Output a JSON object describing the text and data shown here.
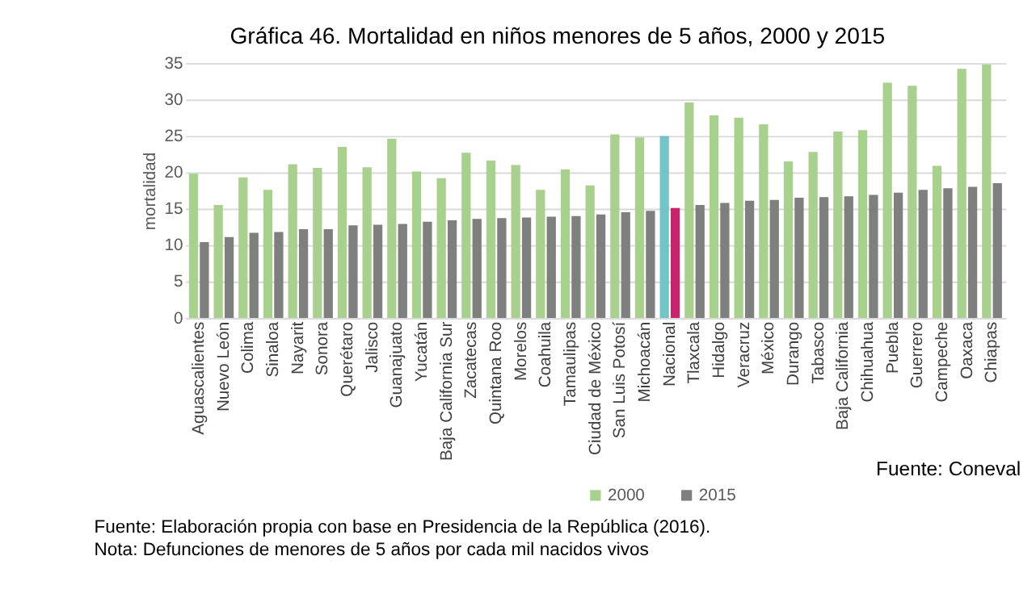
{
  "chart_data": {
    "type": "bar",
    "title": "Gráfica 46. Mortalidad en niños menores de 5 años, 2000 y 2015",
    "ylabel": "mortalidad",
    "categories": [
      "Aguascalientes",
      "Nuevo León",
      "Colima",
      "Sinaloa",
      "Nayarit",
      "Sonora",
      "Querétaro",
      "Jalisco",
      "Guanajuato",
      "Yucatán",
      "Baja California Sur",
      "Zacatecas",
      "Quintana Roo",
      "Morelos",
      "Coahuila",
      "Tamaulipas",
      "Ciudad de México",
      "San Luis Potosí",
      "Michoacán",
      "Nacional",
      "Tlaxcala",
      "Hidalgo",
      "Veracruz",
      "México",
      "Durango",
      "Tabasco",
      "Baja California",
      "Chihuahua",
      "Puebla",
      "Guerrero",
      "Campeche",
      "Oaxaca",
      "Chiapas"
    ],
    "series": [
      {
        "name": "2000",
        "color": "#a9d18e",
        "colors": [
          "#a9d18e",
          "#a9d18e",
          "#a9d18e",
          "#a9d18e",
          "#a9d18e",
          "#a9d18e",
          "#a9d18e",
          "#a9d18e",
          "#a9d18e",
          "#a9d18e",
          "#a9d18e",
          "#a9d18e",
          "#a9d18e",
          "#a9d18e",
          "#a9d18e",
          "#a9d18e",
          "#a9d18e",
          "#a9d18e",
          "#a9d18e",
          "#72c4c6",
          "#a9d18e",
          "#a9d18e",
          "#a9d18e",
          "#a9d18e",
          "#a9d18e",
          "#a9d18e",
          "#a9d18e",
          "#a9d18e",
          "#a9d18e",
          "#a9d18e",
          "#a9d18e",
          "#a9d18e",
          "#a9d18e"
        ],
        "values": [
          19.8,
          15.5,
          19.3,
          17.6,
          21.1,
          20.6,
          23.5,
          20.7,
          24.6,
          20.1,
          19.2,
          22.7,
          21.6,
          21.0,
          17.6,
          20.4,
          18.2,
          25.2,
          24.8,
          25.0,
          29.6,
          27.8,
          27.5,
          26.6,
          21.5,
          22.8,
          25.6,
          25.8,
          32.3,
          31.9,
          20.9,
          34.2,
          34.8
        ]
      },
      {
        "name": "2015",
        "color": "#7f7f7f",
        "colors": [
          "#7f7f7f",
          "#7f7f7f",
          "#7f7f7f",
          "#7f7f7f",
          "#7f7f7f",
          "#7f7f7f",
          "#7f7f7f",
          "#7f7f7f",
          "#7f7f7f",
          "#7f7f7f",
          "#7f7f7f",
          "#7f7f7f",
          "#7f7f7f",
          "#7f7f7f",
          "#7f7f7f",
          "#7f7f7f",
          "#7f7f7f",
          "#7f7f7f",
          "#7f7f7f",
          "#c8246e",
          "#7f7f7f",
          "#7f7f7f",
          "#7f7f7f",
          "#7f7f7f",
          "#7f7f7f",
          "#7f7f7f",
          "#7f7f7f",
          "#7f7f7f",
          "#7f7f7f",
          "#7f7f7f",
          "#7f7f7f",
          "#7f7f7f",
          "#7f7f7f"
        ],
        "values": [
          10.4,
          11.1,
          11.7,
          11.8,
          12.2,
          12.2,
          12.7,
          12.8,
          12.9,
          13.2,
          13.4,
          13.6,
          13.7,
          13.8,
          13.9,
          14.0,
          14.2,
          14.5,
          14.7,
          15.1,
          15.5,
          15.8,
          16.1,
          16.2,
          16.5,
          16.6,
          16.7,
          16.9,
          17.2,
          17.6,
          17.8,
          18.0,
          18.5
        ]
      }
    ],
    "ylim": [
      0,
      35
    ],
    "yticks": [
      0,
      5,
      10,
      15,
      20,
      25,
      30,
      35
    ],
    "grid": "y",
    "legend": "bottom",
    "annotations": [
      "Fuente: Coneval",
      "Fuente: Elaboración propia con base en Presidencia de la República (2016).",
      "Nota: Defunciones de menores de 5 años por cada mil nacidos vivos"
    ]
  }
}
